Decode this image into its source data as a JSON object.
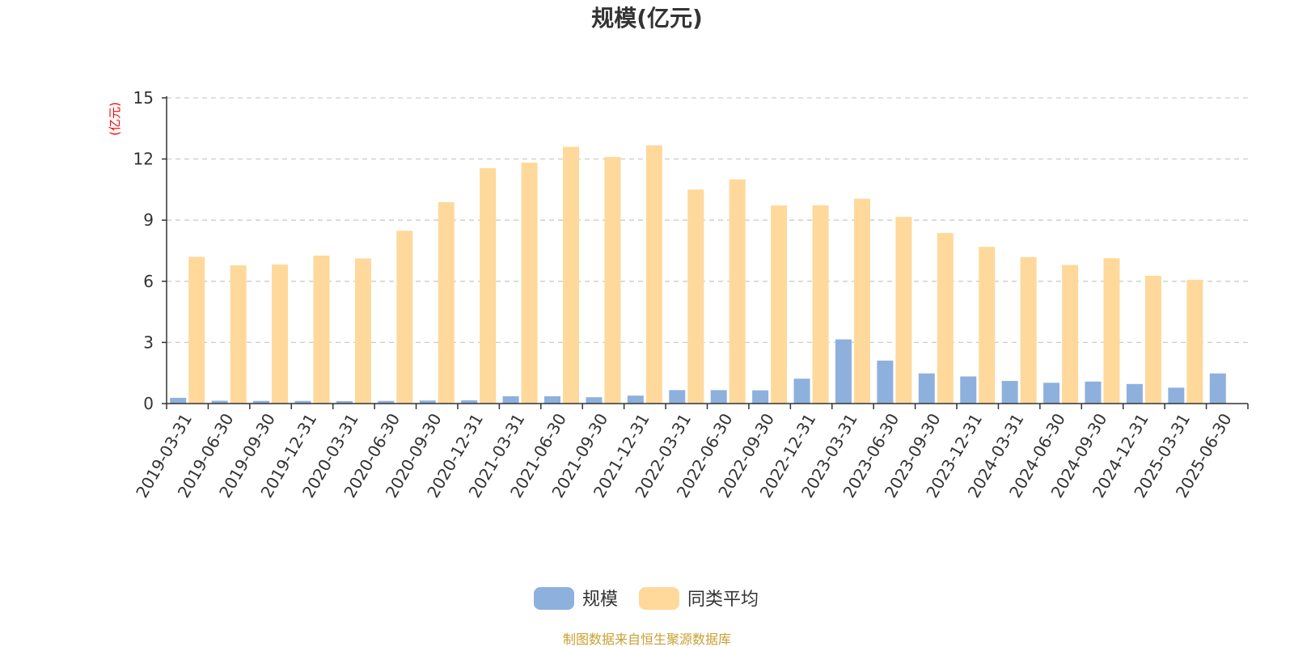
{
  "chart_data": {
    "type": "bar",
    "title": "规模(亿元)",
    "ylabel": "(亿元)",
    "xlabel": "",
    "ylim": [
      0,
      15
    ],
    "yticks": [
      0,
      3,
      6,
      9,
      12,
      15
    ],
    "grid": true,
    "legend_position": "bottom",
    "categories": [
      "2019-03-31",
      "2019-06-30",
      "2019-09-30",
      "2019-12-31",
      "2020-03-31",
      "2020-06-30",
      "2020-09-30",
      "2020-12-31",
      "2021-03-31",
      "2021-06-30",
      "2021-09-30",
      "2021-12-31",
      "2022-03-31",
      "2022-06-30",
      "2022-09-30",
      "2022-12-31",
      "2023-03-31",
      "2023-06-30",
      "2023-09-30",
      "2023-12-31",
      "2024-03-31",
      "2024-06-30",
      "2024-09-30",
      "2024-12-31",
      "2025-03-31",
      "2025-06-30"
    ],
    "series": [
      {
        "name": "规模",
        "color": "#8eb0dd",
        "values": [
          0.28,
          0.14,
          0.13,
          0.13,
          0.12,
          0.13,
          0.15,
          0.16,
          0.36,
          0.36,
          0.31,
          0.39,
          0.66,
          0.66,
          0.65,
          1.22,
          3.15,
          2.11,
          1.48,
          1.33,
          1.11,
          1.02,
          1.08,
          0.96,
          0.78,
          1.48
        ]
      },
      {
        "name": "同类平均",
        "color": "#fed99b",
        "values": [
          7.2,
          6.78,
          6.82,
          7.26,
          7.12,
          8.48,
          9.88,
          11.55,
          11.82,
          12.6,
          12.1,
          12.67,
          10.5,
          11.0,
          9.72,
          9.73,
          10.05,
          9.16,
          8.37,
          7.69,
          7.19,
          6.8,
          7.13,
          6.27,
          6.07,
          0
        ]
      }
    ]
  },
  "colors": {
    "title": "#333333",
    "axis": "#333333",
    "grid": "#cccccc",
    "ylabel": "#ff0000",
    "source": "#c8a033"
  },
  "source_note": "制图数据来自恒生聚源数据库"
}
